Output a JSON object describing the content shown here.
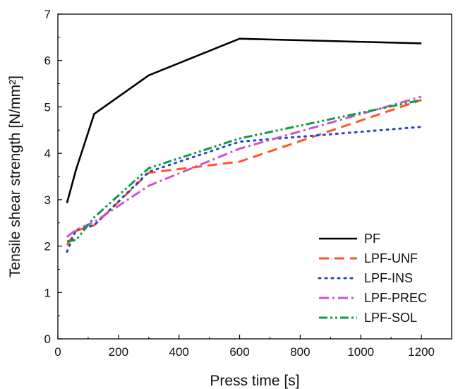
{
  "chart_data": {
    "type": "line",
    "xlabel": "Press time [s]",
    "ylabel": "Tensile shear strength [N/mm²]",
    "xlim": [
      0,
      1300
    ],
    "ylim": [
      0,
      7
    ],
    "xticks": [
      0,
      200,
      400,
      600,
      800,
      1000,
      1200
    ],
    "yticks": [
      0,
      1,
      2,
      3,
      4,
      5,
      6,
      7
    ],
    "grid": false,
    "legend_position": "bottom-right",
    "series": [
      {
        "name": "PF",
        "color": "#000000",
        "dash": "solid",
        "x": [
          30,
          60,
          120,
          300,
          600,
          1200
        ],
        "y": [
          2.93,
          3.65,
          4.85,
          5.68,
          6.47,
          6.37
        ]
      },
      {
        "name": "LPF-UNF",
        "color": "#ff5522",
        "dash": "dashed",
        "x": [
          30,
          60,
          120,
          300,
          600,
          1200
        ],
        "y": [
          2.02,
          2.33,
          2.45,
          3.58,
          3.82,
          5.15
        ]
      },
      {
        "name": "LPF-INS",
        "color": "#2244cc",
        "dash": "dotted",
        "x": [
          30,
          60,
          120,
          300,
          600,
          1200
        ],
        "y": [
          1.88,
          2.35,
          2.45,
          3.6,
          4.25,
          4.57
        ]
      },
      {
        "name": "LPF-PREC",
        "color": "#cc55cc",
        "dash": "dashdot",
        "x": [
          30,
          60,
          120,
          300,
          600,
          1200
        ],
        "y": [
          2.2,
          2.35,
          2.52,
          3.3,
          4.1,
          5.22
        ]
      },
      {
        "name": "LPF-SOL",
        "color": "#119944",
        "dash": "dashdotdot",
        "x": [
          30,
          60,
          120,
          300,
          600,
          1200
        ],
        "y": [
          2.1,
          2.13,
          2.62,
          3.68,
          4.32,
          5.15
        ]
      }
    ]
  }
}
